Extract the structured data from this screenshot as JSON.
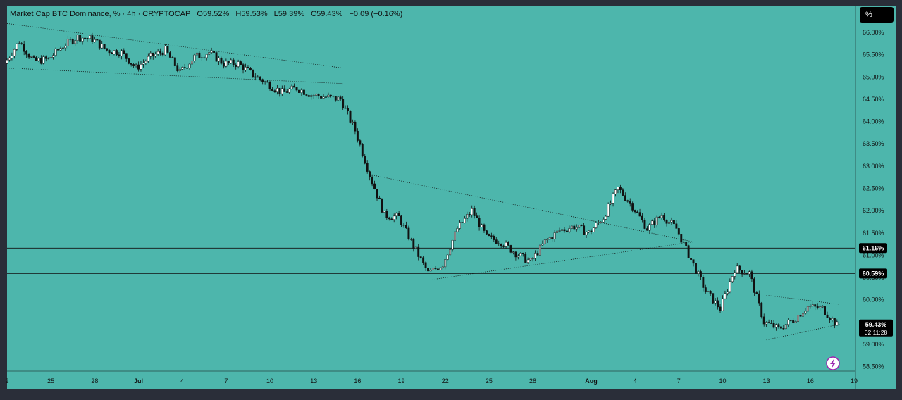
{
  "legend": {
    "symbol": "Market Cap BTC Dominance, % · 4h · CRYPTOCAP",
    "open": "O59.52%",
    "high": "H59.53%",
    "low": "L59.39%",
    "close": "C59.43%",
    "change": "−0.09 (−0.16%)"
  },
  "scale_mode_label": "%",
  "colors": {
    "background": "#4db6ac",
    "frame": "#2a2e39",
    "candle": "#111111",
    "line": "#111111"
  },
  "chart_data": {
    "type": "candlestick",
    "title": "Market Cap BTC Dominance, % · 4h · CRYPTOCAP",
    "x_ticks": [
      "2",
      "25",
      "28",
      "Jul",
      "4",
      "7",
      "10",
      "13",
      "16",
      "19",
      "22",
      "25",
      "28",
      "Aug",
      "4",
      "7",
      "10",
      "13",
      "16",
      "19"
    ],
    "y_ticks": [
      "66.00%",
      "65.50%",
      "65.00%",
      "64.50%",
      "64.00%",
      "63.50%",
      "63.00%",
      "62.50%",
      "62.00%",
      "61.50%",
      "61.00%",
      "60.50%",
      "60.00%",
      "59.50%",
      "59.00%",
      "58.50%"
    ],
    "ylim": [
      58.4,
      66.6
    ],
    "horizontal_levels": [
      {
        "label": "61.16%",
        "value": 61.16
      },
      {
        "label": "60.59%",
        "value": 60.59
      }
    ],
    "current_price": {
      "label": "59.43%",
      "countdown": "02:11:28",
      "value": 59.43
    },
    "trendlines": [
      {
        "from": [
          "Jun 22",
          66.2
        ],
        "to": [
          "Jul 15",
          65.2
        ]
      },
      {
        "from": [
          "Jun 22",
          65.2
        ],
        "to": [
          "Jul 15",
          64.85
        ]
      },
      {
        "from": [
          "Jul 17",
          62.8
        ],
        "to": [
          "Aug 8",
          61.3
        ]
      },
      {
        "from": [
          "Jul 21",
          60.45
        ],
        "to": [
          "Aug 8",
          61.3
        ]
      },
      {
        "from": [
          "Aug 13",
          60.1
        ],
        "to": [
          "Aug 18",
          59.9
        ]
      },
      {
        "from": [
          "Aug 13",
          59.1
        ],
        "to": [
          "Aug 18",
          59.45
        ]
      }
    ],
    "path": [
      [
        "Jun 22",
        65.3
      ],
      [
        "Jun 23",
        65.8
      ],
      [
        "Jun 24",
        65.35
      ],
      [
        "Jun 25",
        65.4
      ],
      [
        "Jun 26",
        65.7
      ],
      [
        "Jun 27",
        65.9
      ],
      [
        "Jun 28",
        65.85
      ],
      [
        "Jun 29",
        65.6
      ],
      [
        "Jun 30",
        65.55
      ],
      [
        "Jul 1",
        65.2
      ],
      [
        "Jul 2",
        65.45
      ],
      [
        "Jul 3",
        65.6
      ],
      [
        "Jul 4",
        65.1
      ],
      [
        "Jul 5",
        65.45
      ],
      [
        "Jul 6",
        65.55
      ],
      [
        "Jul 7",
        65.3
      ],
      [
        "Jul 8",
        65.3
      ],
      [
        "Jul 9",
        65.05
      ],
      [
        "Jul 10",
        64.85
      ],
      [
        "Jul 11",
        64.65
      ],
      [
        "Jul 12",
        64.75
      ],
      [
        "Jul 13",
        64.6
      ],
      [
        "Jul 14",
        64.55
      ],
      [
        "Jul 15",
        64.5
      ],
      [
        "Jul 16",
        63.8
      ],
      [
        "Jul 17",
        62.8
      ],
      [
        "Jul 18",
        61.9
      ],
      [
        "Jul 19",
        61.85
      ],
      [
        "Jul 20",
        61.2
      ],
      [
        "Jul 21",
        60.6
      ],
      [
        "Jul 22",
        60.8
      ],
      [
        "Jul 23",
        61.6
      ],
      [
        "Jul 24",
        62.0
      ],
      [
        "Jul 25",
        61.4
      ],
      [
        "Jul 26",
        61.3
      ],
      [
        "Jul 27",
        61.05
      ],
      [
        "Jul 28",
        60.85
      ],
      [
        "Jul 29",
        61.3
      ],
      [
        "Jul 30",
        61.55
      ],
      [
        "Jul 31",
        61.65
      ],
      [
        "Aug 1",
        61.5
      ],
      [
        "Aug 2",
        61.85
      ],
      [
        "Aug 3",
        62.5
      ],
      [
        "Aug 4",
        62.1
      ],
      [
        "Aug 5",
        61.6
      ],
      [
        "Aug 6",
        61.9
      ],
      [
        "Aug 7",
        61.6
      ],
      [
        "Aug 8",
        60.9
      ],
      [
        "Aug 9",
        60.2
      ],
      [
        "Aug 10",
        59.8
      ],
      [
        "Aug 11",
        60.7
      ],
      [
        "Aug 12",
        60.6
      ],
      [
        "Aug 13",
        59.5
      ],
      [
        "Aug 14",
        59.35
      ],
      [
        "Aug 15",
        59.55
      ],
      [
        "Aug 16",
        59.85
      ],
      [
        "Aug 17",
        59.8
      ],
      [
        "Aug 18",
        59.43
      ]
    ]
  }
}
